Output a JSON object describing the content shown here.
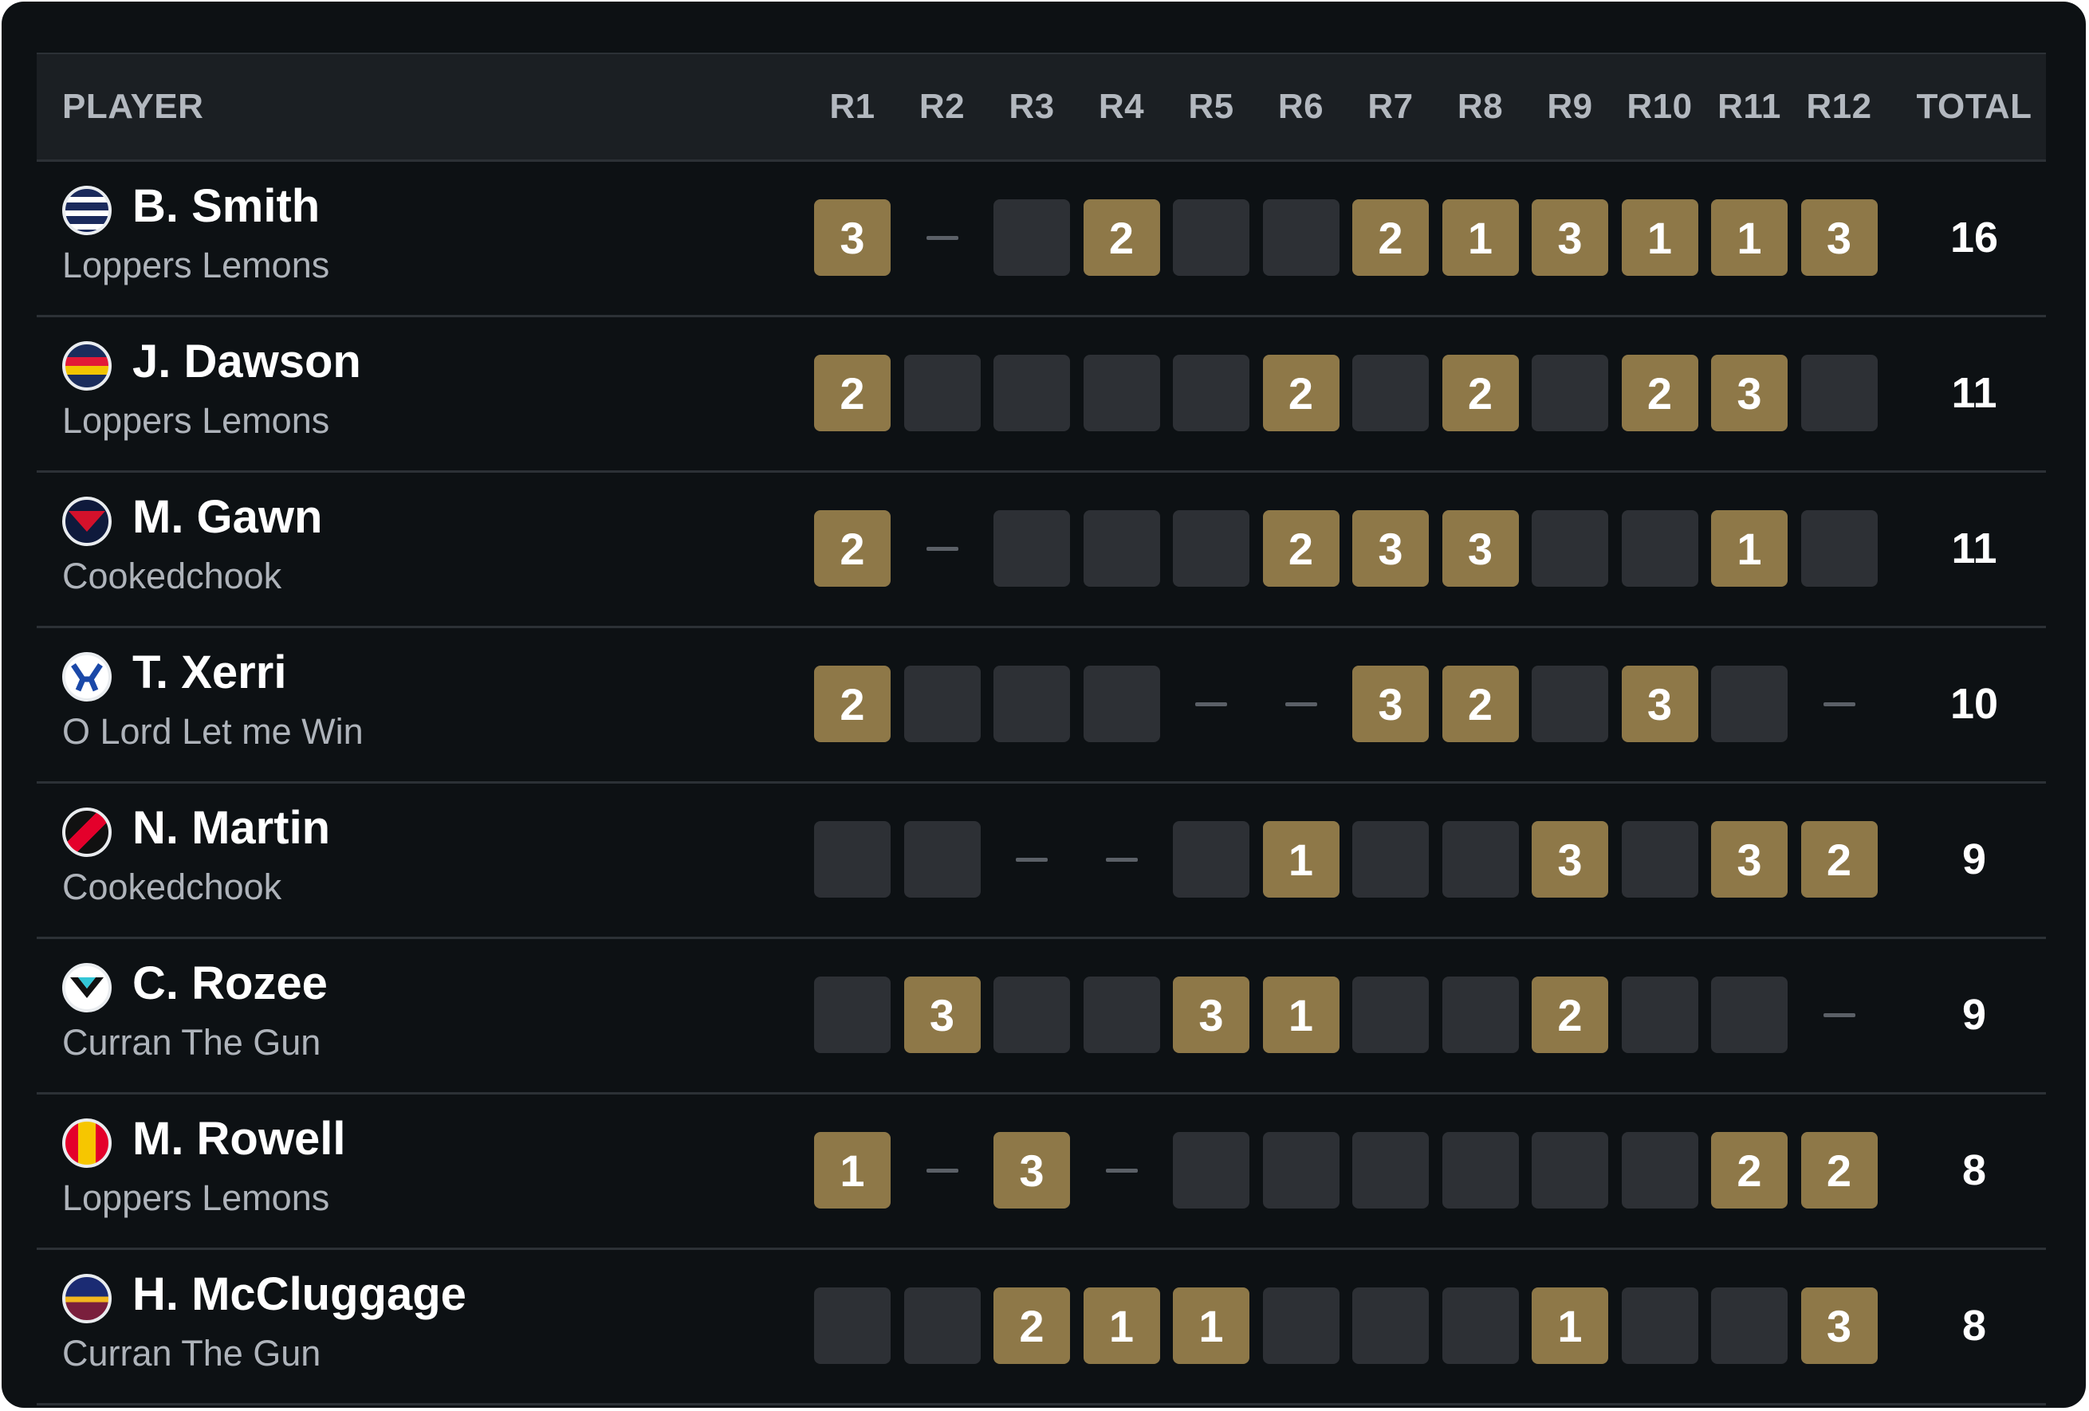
{
  "header": {
    "player_label": "PLAYER",
    "rounds": [
      "R1",
      "R2",
      "R3",
      "R4",
      "R5",
      "R6",
      "R7",
      "R8",
      "R9",
      "R10",
      "R11",
      "R12"
    ],
    "total_label": "TOTAL"
  },
  "rows": [
    {
      "name": "B. Smith",
      "team": "Loppers Lemons",
      "total": "16",
      "emblem": "geelong-cats-icon",
      "votes": [
        "3",
        "-",
        "",
        "2",
        "",
        "",
        "2",
        "1",
        "3",
        "1",
        "1",
        "3"
      ]
    },
    {
      "name": "J. Dawson",
      "team": "Loppers Lemons",
      "total": "11",
      "emblem": "adelaide-crows-icon",
      "votes": [
        "2",
        "",
        "",
        "",
        "",
        "2",
        "",
        "2",
        "",
        "2",
        "3",
        ""
      ]
    },
    {
      "name": "M. Gawn",
      "team": "Cookedchook",
      "total": "11",
      "emblem": "melbourne-demons-icon",
      "votes": [
        "2",
        "-",
        "",
        "",
        "",
        "2",
        "3",
        "3",
        "",
        "",
        "1",
        ""
      ]
    },
    {
      "name": "T. Xerri",
      "team": "O Lord Let me Win",
      "total": "10",
      "emblem": "north-melbourne-icon",
      "votes": [
        "2",
        "",
        "",
        "",
        "-",
        "-",
        "3",
        "2",
        "",
        "3",
        "",
        "-"
      ]
    },
    {
      "name": "N. Martin",
      "team": "Cookedchook",
      "total": "9",
      "emblem": "essendon-bombers-icon",
      "votes": [
        "",
        "",
        "-",
        "-",
        "",
        "1",
        "",
        "",
        "3",
        "",
        "3",
        "2"
      ]
    },
    {
      "name": "C. Rozee",
      "team": "Curran The Gun",
      "total": "9",
      "emblem": "port-adelaide-icon",
      "votes": [
        "",
        "3",
        "",
        "",
        "3",
        "1",
        "",
        "",
        "2",
        "",
        "",
        "-"
      ]
    },
    {
      "name": "M. Rowell",
      "team": "Loppers Lemons",
      "total": "8",
      "emblem": "gold-coast-suns-icon",
      "votes": [
        "1",
        "-",
        "3",
        "-",
        "",
        "",
        "",
        "",
        "",
        "",
        "2",
        "2"
      ]
    },
    {
      "name": "H. McCluggage",
      "team": "Curran The Gun",
      "total": "8",
      "emblem": "brisbane-lions-icon",
      "votes": [
        "",
        "",
        "2",
        "1",
        "1",
        "",
        "",
        "",
        "1",
        "",
        "",
        "3"
      ]
    }
  ],
  "colors": {
    "vote": "#8e7848",
    "empty": "#2d3035",
    "background": "#0d1114",
    "header": "#1b1f23"
  }
}
